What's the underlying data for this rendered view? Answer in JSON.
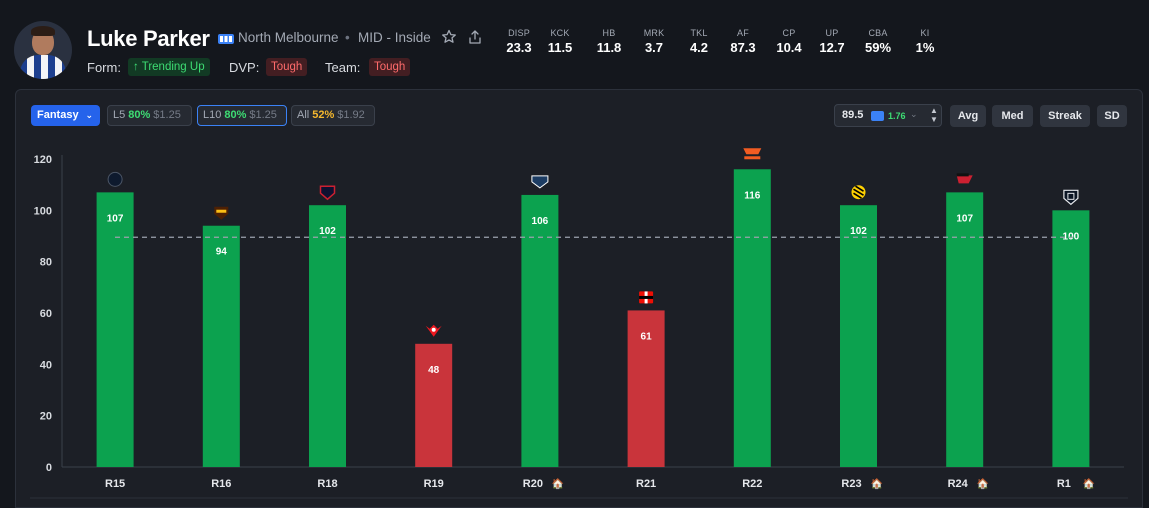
{
  "player": {
    "name": "Luke Parker",
    "team": "North Melbourne",
    "separator": "•",
    "position": "MID - Inside",
    "form_label": "Form:",
    "form_value": "↑ Trending Up",
    "dvp_label": "DVP:",
    "dvp_value": "Tough",
    "team_label": "Team:",
    "team_value": "Tough"
  },
  "stats": [
    {
      "label": "DISP",
      "value": "23.3"
    },
    {
      "label": "KCK",
      "value": "11.5"
    },
    {
      "label": "HB",
      "value": "11.8"
    },
    {
      "label": "MRK",
      "value": "3.7"
    },
    {
      "label": "TKL",
      "value": "4.2"
    },
    {
      "label": "AF",
      "value": "87.3"
    },
    {
      "label": "CP",
      "value": "10.4"
    },
    {
      "label": "UP",
      "value": "12.7"
    },
    {
      "label": "CBA",
      "value": "59%"
    },
    {
      "label": "KI",
      "value": "1%"
    }
  ],
  "controls": {
    "metric": "Fantasy",
    "hit_rates": [
      {
        "label": "L5",
        "pct": "80%",
        "price": "$1.25",
        "pct_color": "#3ddc73"
      },
      {
        "label": "L10",
        "pct": "80%",
        "price": "$1.25",
        "pct_color": "#3ddc73"
      },
      {
        "label": "All",
        "pct": "52%",
        "price": "$1.92",
        "pct_color": "#f5b82e"
      }
    ],
    "line_value": "89.5",
    "line_odds": "1.76",
    "toggles": [
      "Avg",
      "Med",
      "Streak",
      "SD"
    ]
  },
  "colors": {
    "over": "#0ca24f",
    "under": "#c9343b",
    "accent": "#2563eb",
    "line": "#9ca3af"
  },
  "chart_data": {
    "type": "bar",
    "title": "",
    "xlabel": "",
    "ylabel": "",
    "ylim": [
      0,
      120
    ],
    "yticks": [
      0,
      20,
      40,
      60,
      80,
      100,
      120
    ],
    "threshold": 89.5,
    "categories": [
      "R15",
      "R16",
      "R18",
      "R19",
      "R20",
      "R21",
      "R22",
      "R23",
      "R24",
      "R1"
    ],
    "home_icon": "🏠",
    "home": [
      false,
      false,
      false,
      false,
      true,
      false,
      false,
      true,
      true,
      true
    ],
    "values": [
      107,
      94,
      102,
      48,
      106,
      61,
      116,
      102,
      107,
      100
    ],
    "opponent_icons": [
      "carlton-icon",
      "hawthorn-icon",
      "melbourne-icon",
      "sydney-icon",
      "geelong-icon",
      "stkilda-icon",
      "gws-icon",
      "richmond-icon",
      "essendon-icon",
      "portadelaide-icon"
    ]
  }
}
